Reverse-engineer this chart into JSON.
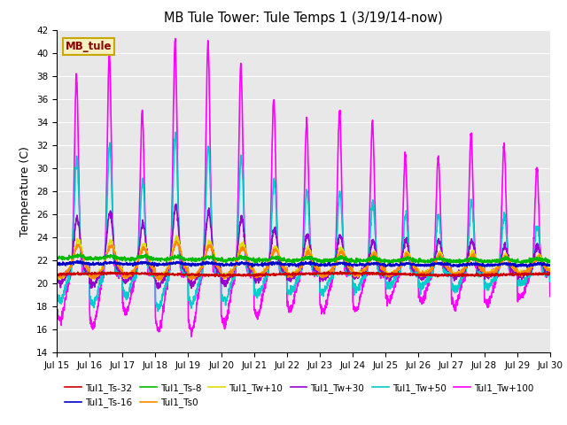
{
  "title": "MB Tule Tower: Tule Temps 1 (3/19/14-now)",
  "ylabel": "Temperature (C)",
  "xlim": [
    0,
    15
  ],
  "ylim": [
    14,
    42
  ],
  "yticks": [
    14,
    16,
    18,
    20,
    22,
    24,
    26,
    28,
    30,
    32,
    34,
    36,
    38,
    40,
    42
  ],
  "background_color": "#e8e8e8",
  "legend_box_facecolor": "#f5f0c0",
  "legend_box_edgecolor": "#c8a800",
  "annotation_text": "MB_tule",
  "annotation_color": "#8b0000",
  "series": [
    {
      "label": "Tul1_Ts-32",
      "color": "#cc0000",
      "lw": 1.2
    },
    {
      "label": "Tul1_Ts-16",
      "color": "#0000cc",
      "lw": 1.2
    },
    {
      "label": "Tul1_Ts-8",
      "color": "#00bb00",
      "lw": 1.2
    },
    {
      "label": "Tul1_Ts0",
      "color": "#ff8800",
      "lw": 1.2
    },
    {
      "label": "Tul1_Tw+10",
      "color": "#dddd00",
      "lw": 1.2
    },
    {
      "label": "Tul1_Tw+30",
      "color": "#9900cc",
      "lw": 1.2
    },
    {
      "label": "Tul1_Tw+50",
      "color": "#00cccc",
      "lw": 1.2
    },
    {
      "label": "Tul1_Tw+100",
      "color": "#ff00ff",
      "lw": 1.2
    }
  ],
  "tick_labels": [
    "Jul 15",
    "Jul 16",
    "Jul 17",
    "Jul 18",
    "Jul 19",
    "Jul 20",
    "Jul 21",
    "Jul 22",
    "Jul 23",
    "Jul 24",
    "Jul 25",
    "Jul 26",
    "Jul 27",
    "Jul 28",
    "Jul 29",
    "Jul 30"
  ]
}
